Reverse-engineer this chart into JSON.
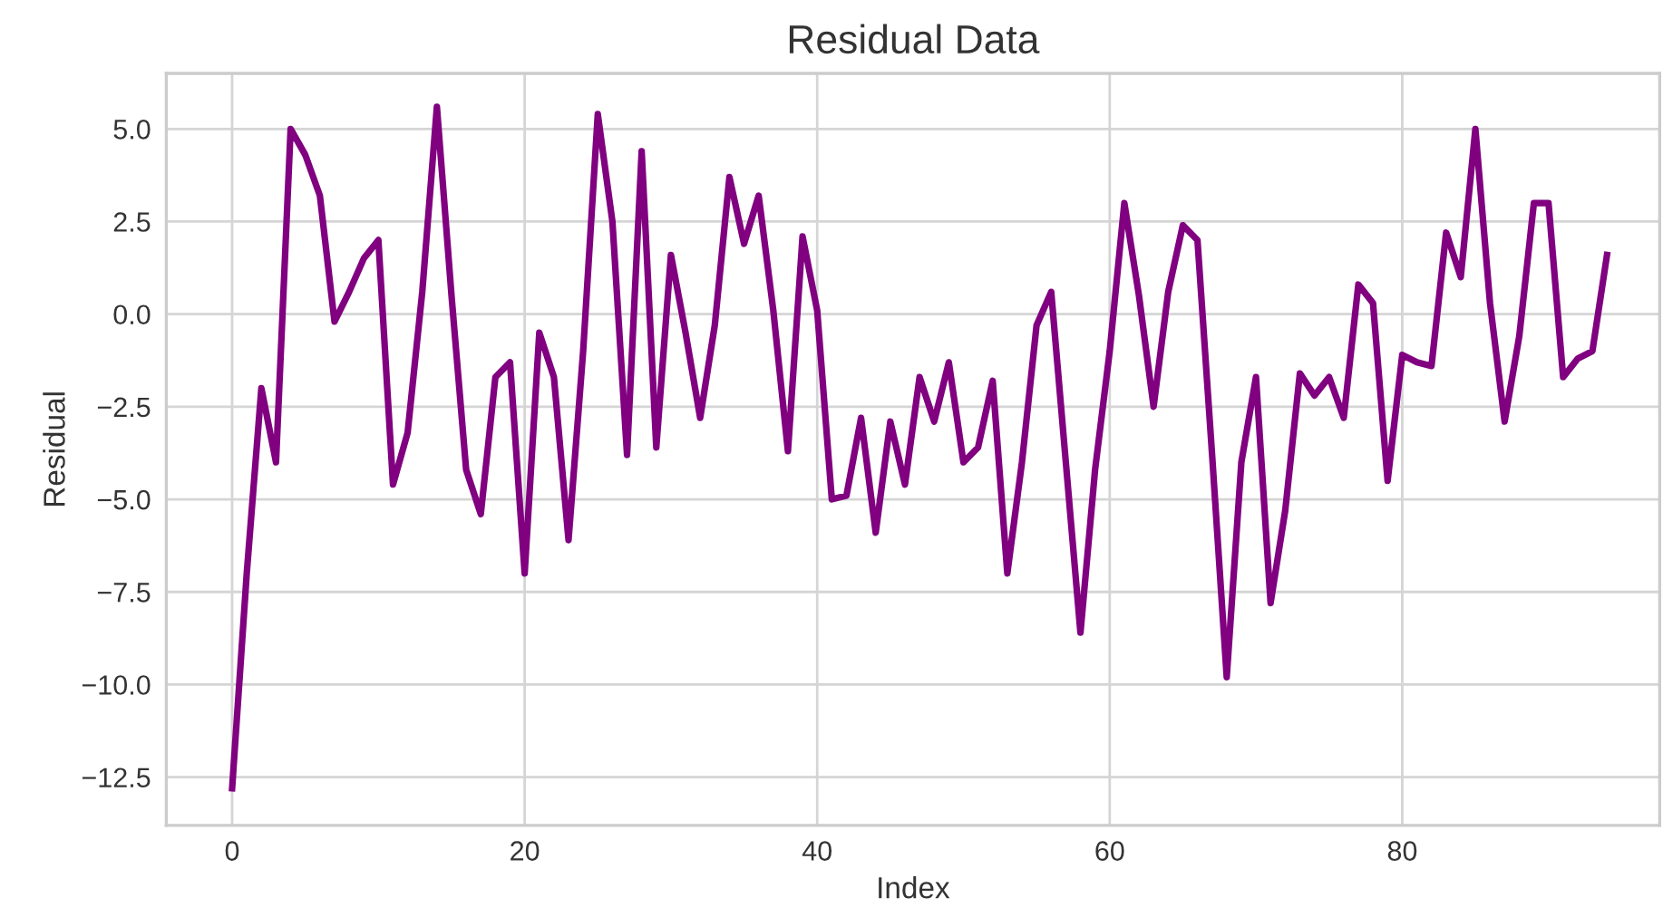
{
  "chart_data": {
    "type": "line",
    "title": "Residual Data",
    "xlabel": "Index",
    "ylabel": "Residual",
    "x": [
      0,
      1,
      2,
      3,
      4,
      5,
      6,
      7,
      8,
      9,
      10,
      11,
      12,
      13,
      14,
      15,
      16,
      17,
      18,
      19,
      20,
      21,
      22,
      23,
      24,
      25,
      26,
      27,
      28,
      29,
      30,
      31,
      32,
      33,
      34,
      35,
      36,
      37,
      38,
      39,
      40,
      41,
      42,
      43,
      44,
      45,
      46,
      47,
      48,
      49,
      50,
      51,
      52,
      53,
      54,
      55,
      56,
      57,
      58,
      59,
      60,
      61,
      62,
      63,
      64,
      65,
      66,
      67,
      68,
      69,
      70,
      71,
      72,
      73,
      74,
      75,
      76,
      77,
      78,
      79,
      80,
      81,
      82,
      83,
      84,
      85,
      86,
      87,
      88,
      89,
      90,
      91,
      92,
      93,
      94
    ],
    "series": [
      {
        "color": "#800080",
        "values": [
          -12.8,
          -7.0,
          -2.0,
          -4.0,
          5.0,
          4.3,
          3.2,
          -0.2,
          0.6,
          1.5,
          2.0,
          -4.6,
          -3.2,
          0.6,
          5.6,
          0.5,
          -4.2,
          -5.4,
          -1.7,
          -1.3,
          -7.0,
          -0.5,
          -1.7,
          -6.1,
          -1.0,
          5.4,
          2.5,
          -3.8,
          4.4,
          -3.6,
          1.6,
          -0.5,
          -2.8,
          -0.3,
          3.7,
          1.9,
          3.2,
          0.1,
          -3.7,
          2.1,
          0.1,
          -5.0,
          -4.9,
          -2.8,
          -5.9,
          -2.9,
          -4.6,
          -1.7,
          -2.9,
          -1.3,
          -4.0,
          -3.6,
          -1.8,
          -7.0,
          -4.0,
          -0.3,
          0.6,
          -4.0,
          -8.6,
          -4.2,
          -1.0,
          3.0,
          0.5,
          -2.5,
          0.6,
          2.4,
          2.0,
          -3.8,
          -9.8,
          -4.0,
          -1.7,
          -7.8,
          -5.3,
          -1.6,
          -2.2,
          -1.7,
          -2.8,
          0.8,
          0.3,
          -4.5,
          -1.1,
          -1.3,
          -1.4,
          2.2,
          1.0,
          5.0,
          0.3,
          -2.9,
          -0.6,
          3.0,
          3.0,
          -1.7,
          -1.2,
          -1.0,
          1.6
        ]
      }
    ],
    "xlim": [
      -4.5,
      97.6
    ],
    "ylim": [
      -13.8,
      6.5
    ],
    "xticks": [
      0,
      20,
      40,
      60,
      80
    ],
    "yticks": [
      {
        "value": 5,
        "label": "5.0"
      },
      {
        "value": 2.5,
        "label": "2.5"
      },
      {
        "value": 0,
        "label": "0.0"
      },
      {
        "value": -2.5,
        "label": "−2.5"
      },
      {
        "value": -5,
        "label": "−5.0"
      },
      {
        "value": -7.5,
        "label": "−7.5"
      },
      {
        "value": -10,
        "label": "−10.0"
      },
      {
        "value": -12.5,
        "label": "−12.5"
      }
    ],
    "grid": true,
    "line_style": "solid",
    "marker": "none"
  }
}
